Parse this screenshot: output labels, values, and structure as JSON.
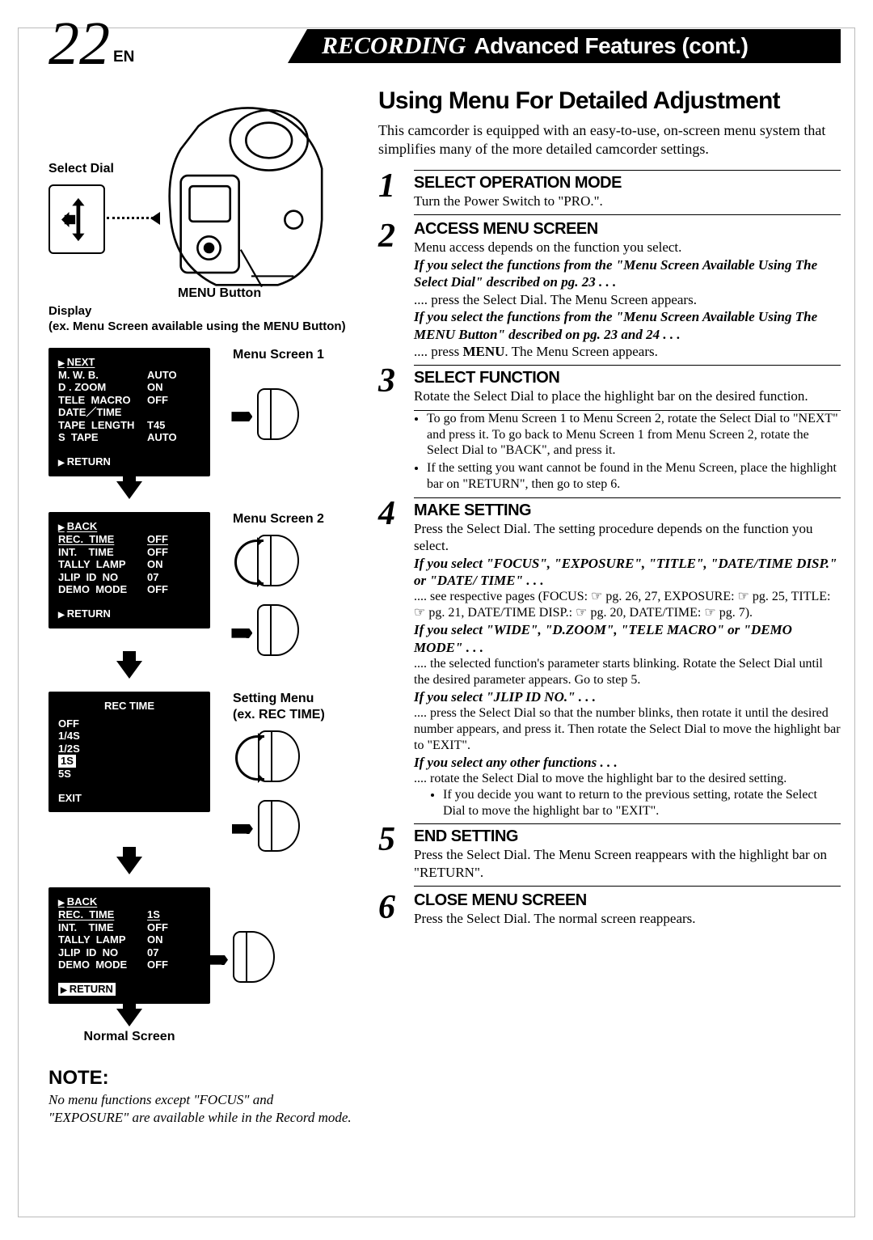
{
  "header": {
    "page_number": "22",
    "lang": "EN",
    "title_italic": "RECORDING",
    "title_bold": "Advanced Features (cont.)"
  },
  "section": {
    "title": "Using Menu For Detailed Adjustment",
    "intro": "This camcorder is equipped with an easy-to-use, on-screen menu system that simplifies many of the more detailed camcorder settings."
  },
  "steps": [
    {
      "n": "1",
      "head": "SELECT OPERATION MODE",
      "body": "Turn the Power Switch to \"PRO.\"."
    },
    {
      "n": "2",
      "head": "ACCESS MENU SCREEN",
      "body": "Menu access depends on the function you select.",
      "cond1_label": "If you select the functions from the \"Menu Screen Available Using The Select Dial\" described on pg. 23 . . .",
      "cond1_body": "press the Select Dial. The Menu Screen appears.",
      "cond2_label": "If you select the functions from the \"Menu Screen Available Using The MENU Button\" described on pg. 23 and 24 . . .",
      "cond2_body_a": "press ",
      "cond2_body_bold": "MENU",
      "cond2_body_b": ". The Menu Screen appears."
    },
    {
      "n": "3",
      "head": "SELECT FUNCTION",
      "body": "Rotate the Select Dial to place the highlight bar on the desired function.",
      "bullets": [
        "To go from Menu Screen 1 to Menu Screen 2, rotate the Select Dial to \"NEXT\" and press it. To go back to Menu Screen 1 from Menu Screen 2, rotate the Select Dial to \"BACK\", and press it.",
        "If the setting you want cannot be found in the Menu Screen, place the highlight bar on \"RETURN\", then go to step 6."
      ]
    },
    {
      "n": "4",
      "head": "MAKE SETTING",
      "body": "Press the Select Dial. The setting procedure depends on the function you select.",
      "c1_label": "If you select \"FOCUS\", \"EXPOSURE\", \"TITLE\", \"DATE/TIME DISP.\" or \"DATE/ TIME\" . . .",
      "c1_body": "see respective pages (FOCUS: ☞ pg. 26, 27, EXPOSURE: ☞ pg. 25, TITLE: ☞ pg. 21, DATE/TIME DISP.: ☞ pg. 20, DATE/TIME: ☞ pg. 7).",
      "c2_label": "If you select \"WIDE\", \"D.ZOOM\", \"TELE MACRO\" or \"DEMO MODE\" . . .",
      "c2_body": "the selected function's parameter starts blinking. Rotate the Select Dial until the desired parameter appears. Go to step 5.",
      "c3_label": "If you select \"JLIP ID NO.\" . . .",
      "c3_body": "press the Select Dial so that the number blinks, then rotate it until the desired number appears, and press it. Then rotate the Select Dial to move the highlight bar to \"EXIT\".",
      "c4_label": "If you select any other functions . . .",
      "c4_body": "rotate the Select Dial to move the highlight bar to the desired setting.",
      "c4_sub": "If you decide you want to return to the previous setting, rotate the Select Dial to move the highlight bar to \"EXIT\"."
    },
    {
      "n": "5",
      "head": "END SETTING",
      "body": "Press the Select Dial. The Menu Screen reappears with the highlight bar on \"RETURN\"."
    },
    {
      "n": "6",
      "head": "CLOSE MENU SCREEN",
      "body": "Press the Select Dial. The normal screen reappears."
    }
  ],
  "left": {
    "select_dial_label": "Select Dial",
    "menu_button_label": "MENU Button",
    "display_label": "Display",
    "display_sub": "(ex. Menu Screen available using the MENU Button)",
    "screen1_caption": "Menu Screen 1",
    "screen2_caption": "Menu Screen 2",
    "setting_caption_a": "Setting Menu",
    "setting_caption_b": "(ex. REC TIME)",
    "normal_caption": "Normal Screen",
    "menu1": {
      "top": "NEXT",
      "rows": [
        {
          "k": "M. W. B.",
          "v": "AUTO"
        },
        {
          "k": "D . ZOOM",
          "v": "ON"
        },
        {
          "k": "TELE  MACRO",
          "v": "OFF"
        },
        {
          "k": "DATE／TIME",
          "v": ""
        },
        {
          "k": "TAPE  LENGTH",
          "v": "T45"
        },
        {
          "k": "S  TAPE",
          "v": "AUTO"
        }
      ],
      "ret": "RETURN"
    },
    "menu2": {
      "top": "BACK",
      "rows": [
        {
          "k": "REC.  TIME",
          "v": "OFF",
          "u": true
        },
        {
          "k": "INT.    TIME",
          "v": "OFF"
        },
        {
          "k": "TALLY  LAMP",
          "v": "ON"
        },
        {
          "k": "JLIP  ID  NO",
          "v": "07"
        },
        {
          "k": "DEMO  MODE",
          "v": "OFF"
        }
      ],
      "ret": "RETURN"
    },
    "setting": {
      "title": "REC TIME",
      "rows": [
        "OFF",
        "1/4S",
        "1/2S",
        "1S",
        "5S"
      ],
      "highlight_index": 3,
      "exit": "EXIT"
    },
    "menu3": {
      "top": "BACK",
      "rows": [
        {
          "k": "REC.  TIME",
          "v": "1S",
          "u": true
        },
        {
          "k": "INT.    TIME",
          "v": "OFF"
        },
        {
          "k": "TALLY  LAMP",
          "v": "ON"
        },
        {
          "k": "JLIP  ID  NO",
          "v": "07"
        },
        {
          "k": "DEMO  MODE",
          "v": "OFF"
        }
      ],
      "ret": "RETURN"
    }
  },
  "note": {
    "head": "NOTE:",
    "body": "No menu functions except \"FOCUS\" and \"EXPOSURE\" are available while in the Record mode."
  }
}
